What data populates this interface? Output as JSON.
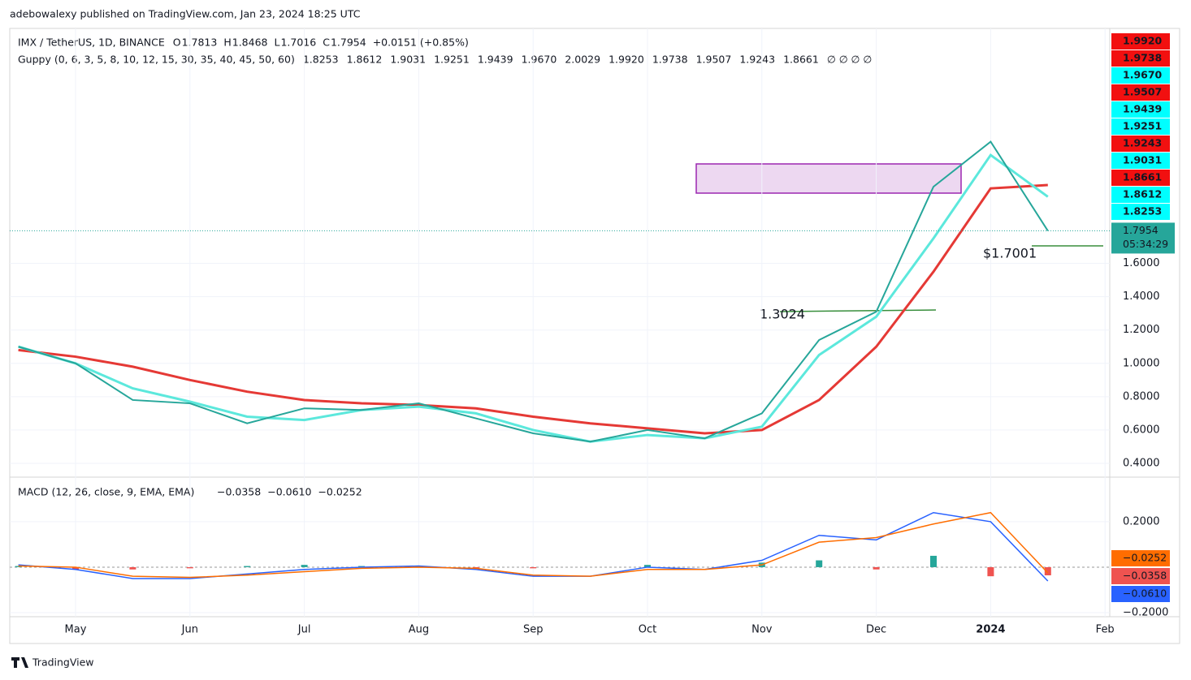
{
  "header": {
    "publisher": "adebowalexy published on TradingView.com, Jan 23, 2024 18:25 UTC",
    "symbol": "IMX / TetherUS, 1D, BINANCE",
    "ohlc": [
      {
        "k": "O",
        "v": "1.7813"
      },
      {
        "k": "H",
        "v": "1.8468"
      },
      {
        "k": "L",
        "v": "1.7016"
      },
      {
        "k": "C",
        "v": "1.7954"
      }
    ],
    "change": "+0.0151 (+0.85%)",
    "guppy_title": "Guppy (0, 6, 3, 5, 8, 10, 12, 15, 30, 35, 40, 45, 50, 60)",
    "guppy_values": [
      {
        "v": "1.8253",
        "color": "#22d3d3"
      },
      {
        "v": "1.8612",
        "color": "#22d3d3"
      },
      {
        "v": "1.9031",
        "color": "#22d3d3"
      },
      {
        "v": "1.9251",
        "color": "#22d3d3"
      },
      {
        "v": "1.9439",
        "color": "#22d3d3"
      },
      {
        "v": "1.9670",
        "color": "#22d3d3"
      },
      {
        "v": "2.0029",
        "color": "#f21010"
      },
      {
        "v": "1.9920",
        "color": "#f21010"
      },
      {
        "v": "1.9738",
        "color": "#f21010"
      },
      {
        "v": "1.9507",
        "color": "#f21010"
      },
      {
        "v": "1.9243",
        "color": "#f21010"
      },
      {
        "v": "1.8661",
        "color": "#f21010"
      }
    ],
    "guppy_empty": "∅ ∅ ∅ ∅",
    "countdown": "05:34:29",
    "footer": "TradingView"
  },
  "chart_data": [
    {
      "type": "line",
      "categories": [
        null,
        "May",
        null,
        "Jun",
        null,
        "Jul",
        null,
        "Aug",
        null,
        "Sep",
        null,
        "Oct",
        null,
        "Nov",
        null,
        "Dec",
        null,
        "2024",
        null,
        "Feb"
      ],
      "ylim": [
        0.322,
        3.01
      ],
      "yticks": [
        {
          "value": 0.4,
          "label": "0.4000"
        },
        {
          "value": 0.6,
          "label": "0.6000"
        },
        {
          "value": 0.8,
          "label": "0.8000"
        },
        {
          "value": 1.0,
          "label": "1.0000"
        },
        {
          "value": 1.2,
          "label": "1.2000"
        },
        {
          "value": 1.4,
          "label": "1.4000"
        },
        {
          "value": 1.6,
          "label": "1.6000"
        }
      ],
      "grid": true,
      "annotations": [
        "$1.7001",
        "1.3024"
      ],
      "series": [
        {
          "color": "#26a69a",
          "values": [
            1.1,
            1.0,
            0.78,
            0.76,
            0.64,
            0.73,
            0.72,
            0.76,
            0.67,
            0.58,
            0.53,
            0.6,
            0.55,
            0.7,
            1.14,
            1.31,
            2.06,
            2.33,
            1.7954,
            null
          ]
        },
        {
          "color": "#5ce8dc",
          "values": [
            1.1,
            1.0,
            0.85,
            0.77,
            0.68,
            0.66,
            0.72,
            0.74,
            0.7,
            0.6,
            0.53,
            0.57,
            0.55,
            0.62,
            1.05,
            1.28,
            1.75,
            2.25,
            2.0,
            null
          ]
        },
        {
          "color": "#e53935",
          "values": [
            1.08,
            1.04,
            0.98,
            0.9,
            0.83,
            0.78,
            0.76,
            0.75,
            0.73,
            0.68,
            0.64,
            0.61,
            0.58,
            0.6,
            0.78,
            1.1,
            1.55,
            2.05,
            2.07,
            null
          ]
        }
      ]
    },
    {
      "type": "macd",
      "title": "MACD (12, 26, close, 9, EMA, EMA)",
      "ylim": [
        -0.218,
        0.389
      ],
      "yticks": [
        {
          "value": 0.2,
          "label": "0.2000"
        },
        {
          "value": -0.2,
          "label": "−0.2000"
        }
      ],
      "series": [
        {
          "kind": "histogram",
          "color": "#ef5350",
          "values": [
            0.005,
            -0.01,
            -0.01,
            -0.005,
            0.005,
            0.01,
            0.005,
            0.005,
            -0.005,
            -0.005,
            0,
            0.01,
            0,
            0.02,
            0.03,
            -0.01,
            0.05,
            -0.04,
            -0.0358,
            null
          ],
          "value_labels": [
            null,
            null,
            null,
            null,
            null,
            null,
            null,
            null,
            null,
            null,
            null,
            null,
            null,
            null,
            null,
            null,
            null,
            null,
            "−0.0358",
            null
          ]
        },
        {
          "kind": "line",
          "color": "#2962ff",
          "values": [
            0.01,
            -0.01,
            -0.05,
            -0.05,
            -0.03,
            -0.01,
            0,
            0.005,
            -0.01,
            -0.04,
            -0.04,
            0,
            -0.01,
            0.03,
            0.14,
            0.12,
            0.24,
            0.2,
            -0.061,
            null
          ],
          "value_labels": [
            null,
            null,
            null,
            null,
            null,
            null,
            null,
            null,
            null,
            null,
            null,
            null,
            null,
            null,
            null,
            null,
            null,
            null,
            "−0.0610",
            null
          ]
        },
        {
          "kind": "line",
          "color": "#ff6d00",
          "values": [
            0.005,
            0,
            -0.04,
            -0.045,
            -0.035,
            -0.02,
            -0.005,
            0,
            -0.005,
            -0.035,
            -0.04,
            -0.01,
            -0.01,
            0.01,
            0.11,
            0.13,
            0.19,
            0.24,
            -0.0252,
            null
          ],
          "value_labels": [
            null,
            null,
            null,
            null,
            null,
            null,
            null,
            null,
            null,
            null,
            null,
            null,
            null,
            null,
            null,
            null,
            null,
            null,
            "−0.0252",
            null
          ]
        }
      ]
    }
  ]
}
